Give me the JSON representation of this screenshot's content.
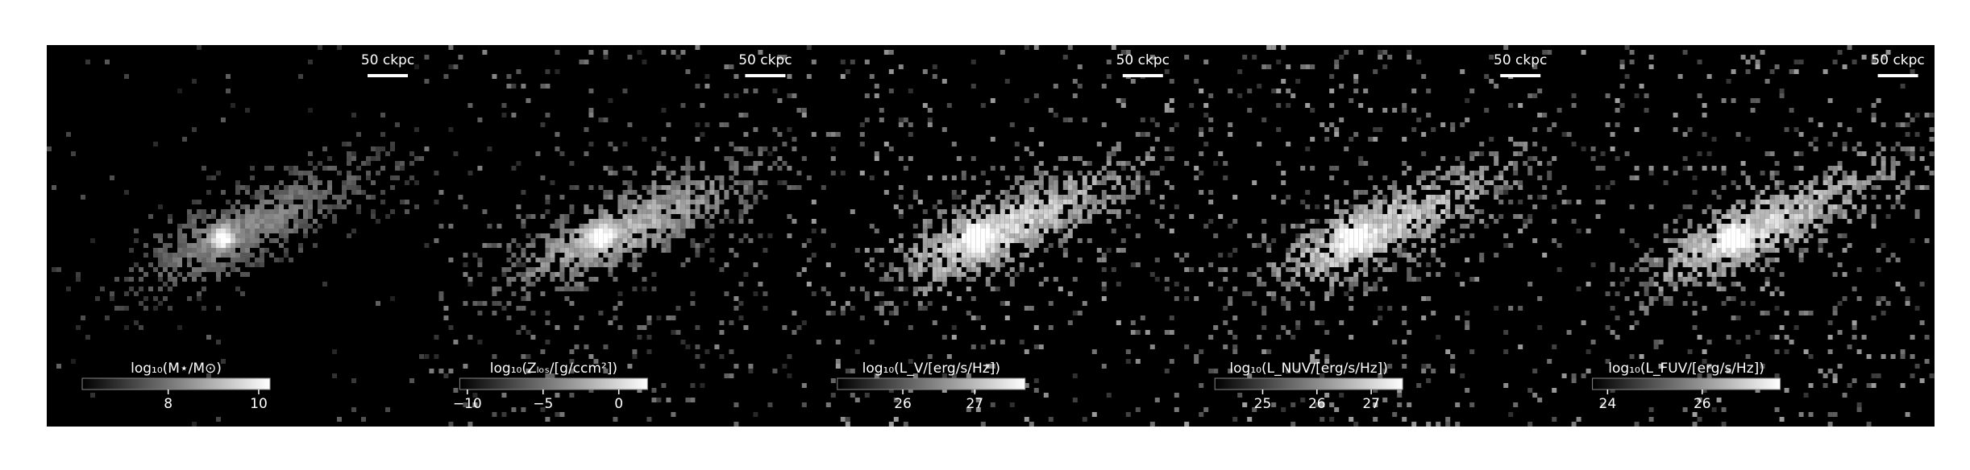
{
  "chart_data": [
    {
      "type": "image",
      "scale_bar_label": "50 ckpc",
      "colorbar_label": "log₁₀(M⋆/M⊙)",
      "clim": [
        6.1,
        10.25
      ],
      "cticks": [
        8,
        10
      ],
      "cmap": "gray"
    },
    {
      "type": "image",
      "scale_bar_label": "50 ckpc",
      "colorbar_label": "log₁₀(Zₗₒₛ/[g/ccm²])",
      "clim": [
        -10.5,
        1.9
      ],
      "cticks": [
        {
          "value": -10,
          "label": "−10"
        },
        {
          "value": -5,
          "label": "−5"
        },
        0
      ],
      "cmap": "gray"
    },
    {
      "type": "image",
      "scale_bar_label": "50 ckpc",
      "colorbar_label": "log₁₀(L_V/[erg/s/Hz])",
      "clim": [
        25.09,
        27.7
      ],
      "cticks": [
        26,
        27
      ],
      "cmap": "gray"
    },
    {
      "type": "image",
      "scale_bar_label": "50 ckpc",
      "colorbar_label": "log₁₀(L_NUV/[erg/s/Hz])",
      "clim": [
        24.12,
        27.58
      ],
      "cticks": [
        25,
        26,
        27
      ],
      "cmap": "gray"
    },
    {
      "type": "image",
      "scale_bar_label": "50 ckpc",
      "colorbar_label": "log₁₀(L_FUV/[erg/s/Hz])",
      "clim": [
        23.68,
        27.65
      ],
      "cticks": [
        24,
        26
      ],
      "cmap": "gray"
    }
  ]
}
